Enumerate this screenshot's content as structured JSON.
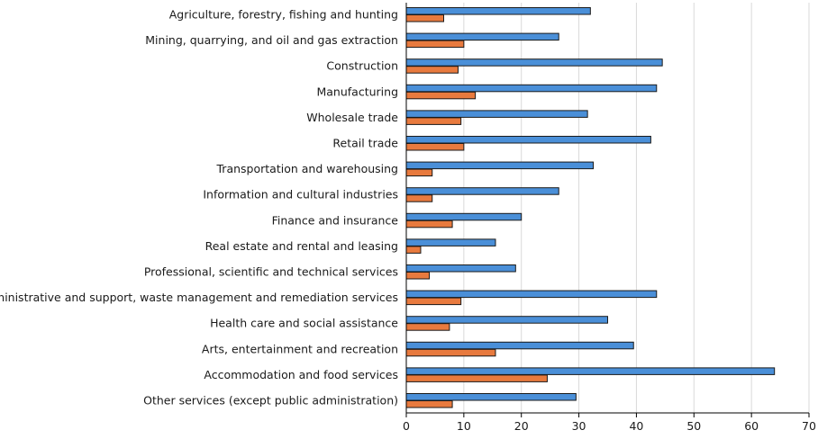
{
  "chart_data": {
    "type": "bar",
    "orientation": "horizontal",
    "categories": [
      "Agriculture, forestry, fishing and hunting",
      "Mining, quarrying, and oil and gas extraction",
      "Construction",
      "Manufacturing",
      "Wholesale trade",
      "Retail trade",
      "Transportation and warehousing",
      "Information and cultural industries",
      "Finance and insurance",
      "Real estate and rental and leasing",
      "Professional, scientific and technical services",
      "Administrative and support, waste management and remediation services",
      "Health care and social assistance",
      "Arts, entertainment and recreation",
      "Accommodation and food services",
      "Other services (except public administration)"
    ],
    "series": [
      {
        "color": "#4a8fd8",
        "values": [
          32,
          26.5,
          44.5,
          43.5,
          31.5,
          42.5,
          32.5,
          26.5,
          20,
          15.5,
          19,
          43.5,
          35,
          39.5,
          64,
          29.5
        ]
      },
      {
        "color": "#e87a3e",
        "values": [
          6.5,
          10,
          9,
          12,
          9.5,
          10,
          4.5,
          4.5,
          8,
          2.5,
          4,
          9.5,
          7.5,
          15.5,
          24.5,
          8
        ]
      }
    ],
    "xlim": [
      0,
      70
    ],
    "xticks": [
      0,
      10,
      20,
      30,
      40,
      50,
      60,
      70
    ],
    "title": "",
    "xlabel": "",
    "ylabel": "",
    "grid": "vertical"
  }
}
